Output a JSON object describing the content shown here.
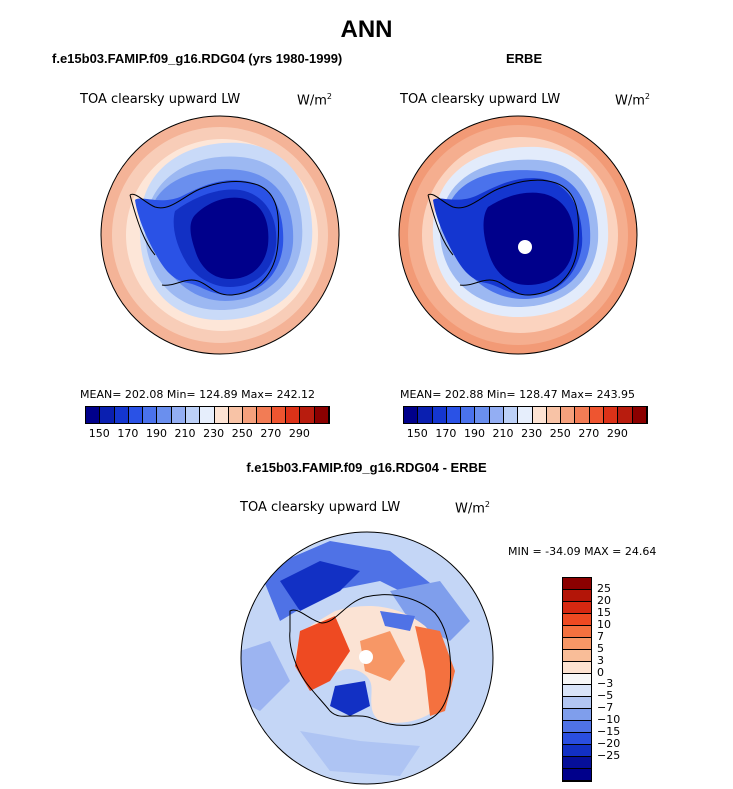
{
  "title": "ANN",
  "panels": [
    {
      "case": "f.e15b03.FAMIP.f09_g16.RDG04 (yrs 1980-1999)",
      "variable": "TOA clearsky upward LW",
      "units": "W/m",
      "units_sup": "2",
      "stats": "MEAN= 202.08   Min= 124.89   Max= 242.12"
    },
    {
      "case": "ERBE",
      "variable": "TOA clearsky upward LW",
      "units": "W/m",
      "units_sup": "2",
      "stats": "MEAN= 202.88   Min= 128.47   Max= 243.95"
    },
    {
      "case": "f.e15b03.FAMIP.f09_g16.RDG04 - ERBE",
      "variable": "TOA clearsky upward LW",
      "units": "W/m",
      "units_sup": "2",
      "stats": "MIN = -34.09 MAX =  24.64"
    }
  ],
  "colorbar_main": {
    "colors": [
      "#00008b",
      "#0a1fb0",
      "#1436d0",
      "#2a52e6",
      "#4a72ec",
      "#6a8fee",
      "#93aef3",
      "#bcd0f7",
      "#e6eefc",
      "#fde3d3",
      "#f8c3a6",
      "#f5a07c",
      "#f27c55",
      "#ee5530",
      "#dc3218",
      "#b81c0e",
      "#8b0000"
    ],
    "ticks": [
      "150",
      "170",
      "190",
      "210",
      "230",
      "250",
      "270",
      "290"
    ]
  },
  "colorbar_diff": {
    "colors": [
      "#8b0000",
      "#b31508",
      "#d62811",
      "#ee4a22",
      "#f4713f",
      "#f79766",
      "#f9bd98",
      "#fde2d0",
      "#f7f7f7",
      "#d9e4f8",
      "#b2c6f2",
      "#7f9eec",
      "#4f72e6",
      "#2a4ee0",
      "#1230c4",
      "#060f99",
      "#00008b"
    ],
    "ticks": [
      "25",
      "20",
      "15",
      "10",
      "7",
      "5",
      "3",
      "0",
      "−3",
      "−5",
      "−7",
      "−10",
      "−15",
      "−20",
      "−25"
    ]
  }
}
